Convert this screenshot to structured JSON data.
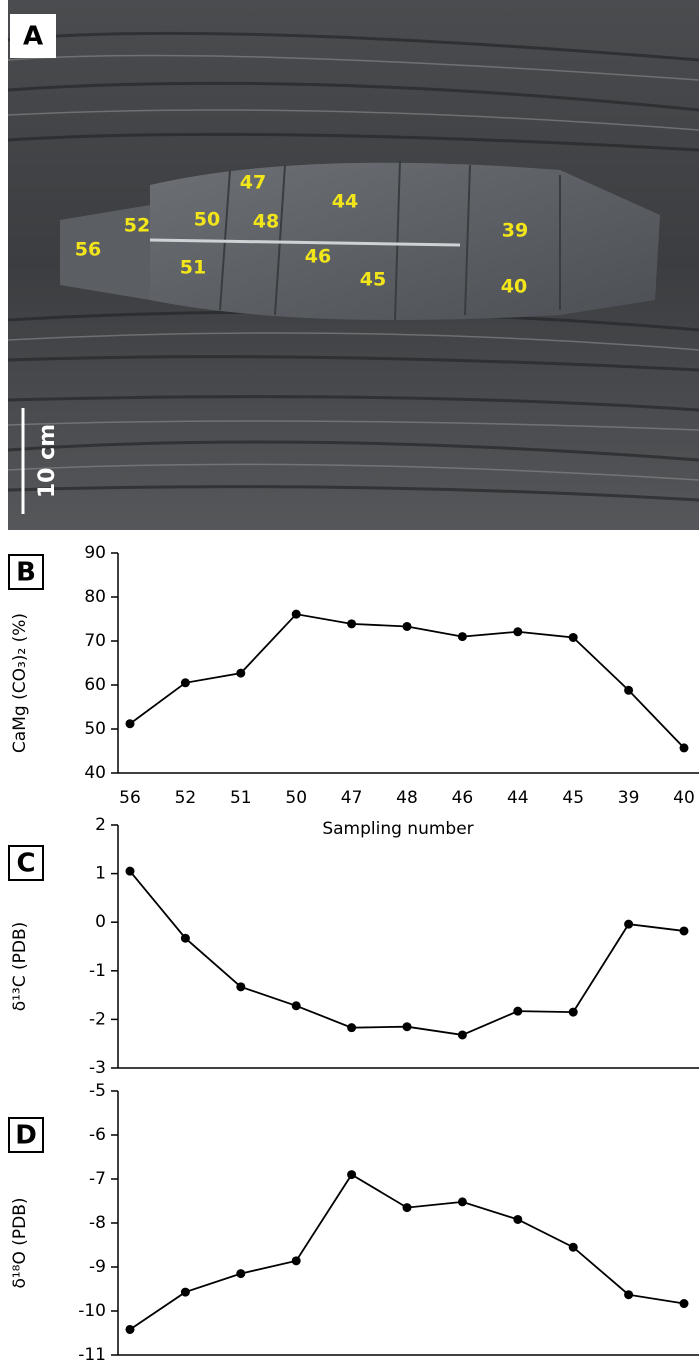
{
  "photo": {
    "panel_label": "A",
    "scale_label": "10 cm",
    "sample_labels": [
      "47",
      "44",
      "52",
      "50",
      "48",
      "39",
      "56",
      "46",
      "51",
      "45",
      "40"
    ]
  },
  "chart_data": [
    {
      "type": "line",
      "panel_label": "B",
      "ylabel": "CaMg (CO₃)₂ (%)",
      "xlabel": "Sampling number",
      "categories": [
        "56",
        "52",
        "51",
        "50",
        "47",
        "48",
        "46",
        "44",
        "45",
        "39",
        "40"
      ],
      "series": [
        {
          "color": "#000000",
          "values": [
            51.2,
            60.5,
            62.7,
            76.1,
            73.9,
            73.3,
            71,
            72.1,
            70.8,
            58.8,
            45.7
          ]
        }
      ],
      "ylim": [
        40,
        90
      ],
      "yticks": [
        40,
        50,
        60,
        70,
        80,
        90
      ]
    },
    {
      "type": "line",
      "panel_label": "C",
      "ylabel": "δ¹³C (PDB)",
      "series": [
        {
          "color": "#000000",
          "values": [
            1.05,
            -0.33,
            -1.33,
            -1.72,
            -2.17,
            -2.15,
            -2.32,
            -1.83,
            -1.85,
            -0.04,
            -0.18
          ]
        }
      ],
      "ylim": [
        -3,
        2
      ],
      "yticks": [
        -3,
        -2,
        -1,
        0,
        1,
        2
      ]
    },
    {
      "type": "line",
      "panel_label": "D",
      "ylabel": "δ¹⁸O (PDB)",
      "series": [
        {
          "color": "#000000",
          "values": [
            -10.42,
            -9.57,
            -9.15,
            -8.86,
            -6.9,
            -7.65,
            -7.52,
            -7.92,
            -8.55,
            -9.63,
            -9.83
          ]
        }
      ],
      "ylim": [
        -11,
        -5
      ],
      "yticks": [
        -11,
        -10,
        -9,
        -8,
        -7,
        -6,
        -5
      ]
    }
  ]
}
